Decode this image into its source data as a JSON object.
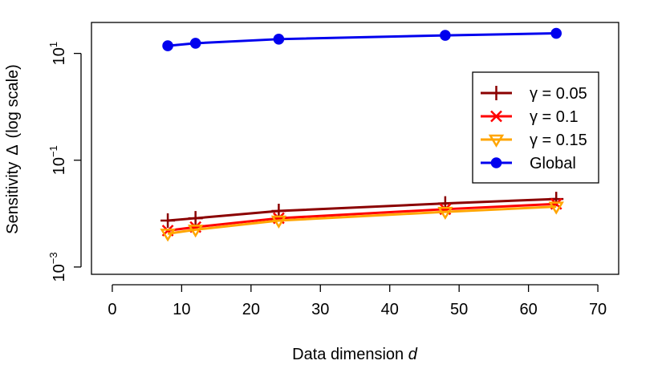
{
  "chart_data": {
    "type": "line",
    "title": "",
    "xlabel": "Data dimension",
    "xlabel_var": "d",
    "ylabel": "Sensitivity",
    "ylabel_symbol": "Δ",
    "ylabel_suffix": "(log scale)",
    "xlim": [
      -3,
      73
    ],
    "ylim": [
      0.00073,
      38
    ],
    "yscale": "log",
    "x_ticks": [
      0,
      10,
      20,
      30,
      40,
      50,
      60,
      70
    ],
    "x_tick_labels": [
      "0",
      "10",
      "20",
      "30",
      "40",
      "50",
      "60",
      "70"
    ],
    "y_ticks": [
      0.001,
      0.1,
      10
    ],
    "y_tick_labels": [
      {
        "base": "10",
        "exp": "−3"
      },
      {
        "base": "10",
        "exp": "−1"
      },
      {
        "base": "10",
        "exp": "1"
      }
    ],
    "grid": false,
    "legend_position": "right",
    "x": [
      8,
      12,
      24,
      48,
      64
    ],
    "series": [
      {
        "name": "γ = 0.05",
        "color": "#8b0000",
        "marker": "plus",
        "values": [
          0.0074,
          0.0082,
          0.0112,
          0.0155,
          0.0188
        ]
      },
      {
        "name": "γ = 0.1",
        "color": "#ff0000",
        "marker": "cross",
        "values": [
          0.0048,
          0.0056,
          0.0082,
          0.0121,
          0.0152
        ]
      },
      {
        "name": "γ = 0.15",
        "color": "#ffa500",
        "marker": "triangle-down",
        "values": [
          0.0042,
          0.005,
          0.0074,
          0.0108,
          0.0135
        ]
      },
      {
        "name": "Global",
        "color": "#0000ee",
        "marker": "circle",
        "values": [
          13.9,
          15.5,
          18.5,
          21.8,
          23.8
        ]
      }
    ]
  }
}
